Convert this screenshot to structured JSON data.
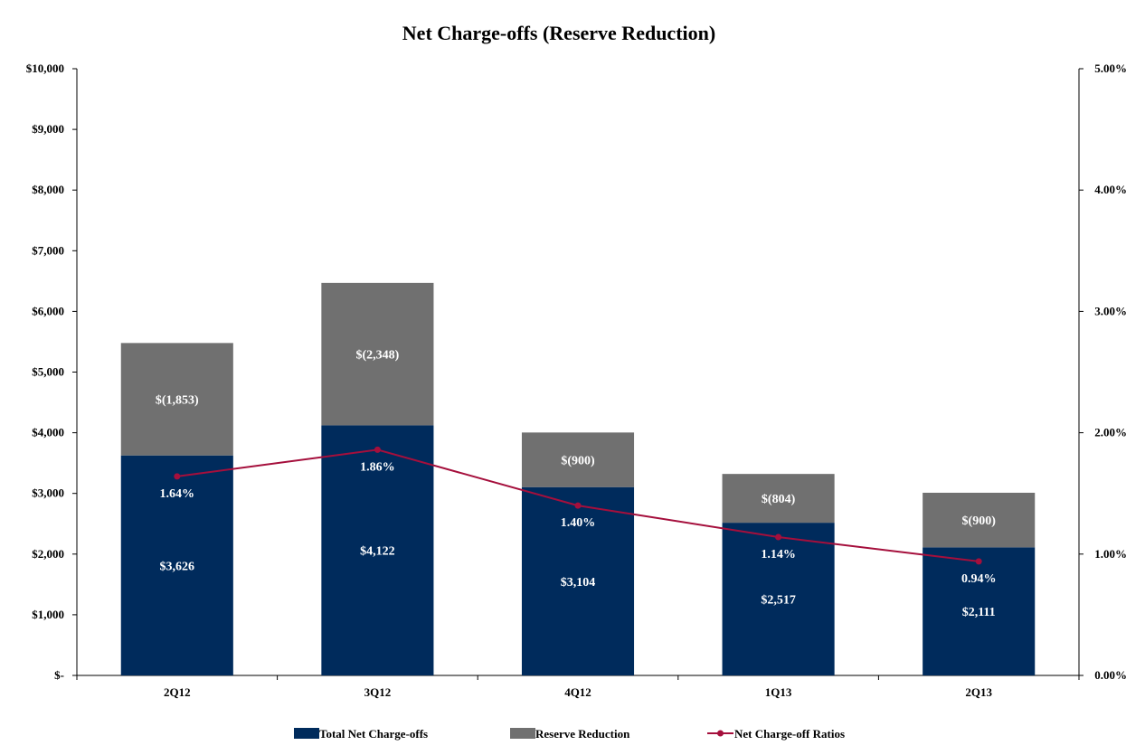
{
  "chart_data": {
    "type": "bar",
    "title": "Net Charge-offs (Reserve Reduction)",
    "categories": [
      "2Q12",
      "3Q12",
      "4Q12",
      "1Q13",
      "2Q13"
    ],
    "y_left": {
      "min": 0,
      "max": 10000,
      "ticks": [
        0,
        1000,
        2000,
        3000,
        4000,
        5000,
        6000,
        7000,
        8000,
        9000,
        10000
      ],
      "tick_labels": [
        "$-",
        "$1,000",
        "$2,000",
        "$3,000",
        "$4,000",
        "$5,000",
        "$6,000",
        "$7,000",
        "$8,000",
        "$9,000",
        "$10,000"
      ]
    },
    "y_right": {
      "min": 0,
      "max": 5,
      "ticks": [
        0,
        1,
        2,
        3,
        4,
        5
      ],
      "tick_labels": [
        "0.00%",
        "1.00%",
        "2.00%",
        "3.00%",
        "4.00%",
        "5.00%"
      ]
    },
    "series": [
      {
        "name": "Total Net Charge-offs",
        "kind": "bar",
        "stack": "main",
        "color": "#002b5c",
        "values": [
          3626,
          4122,
          3104,
          2517,
          2111
        ],
        "labels": [
          "$3,626",
          "$4,122",
          "$3,104",
          "$2,517",
          "$2,111"
        ]
      },
      {
        "name": "Reserve Reduction",
        "kind": "bar",
        "stack": "main",
        "color": "#707070",
        "values": [
          1853,
          2348,
          900,
          804,
          900
        ],
        "labels": [
          "$(1,853)",
          "$(2,348)",
          "$(900)",
          "$(804)",
          "$(900)"
        ]
      },
      {
        "name": "Net Charge-off Ratios",
        "kind": "line",
        "axis": "right",
        "color": "#a50f3c",
        "values": [
          1.64,
          1.86,
          1.4,
          1.14,
          0.94
        ],
        "labels": [
          "1.64%",
          "1.86%",
          "1.40%",
          "1.14%",
          "0.94%"
        ]
      }
    ],
    "legend": "bottom",
    "grid": false
  }
}
